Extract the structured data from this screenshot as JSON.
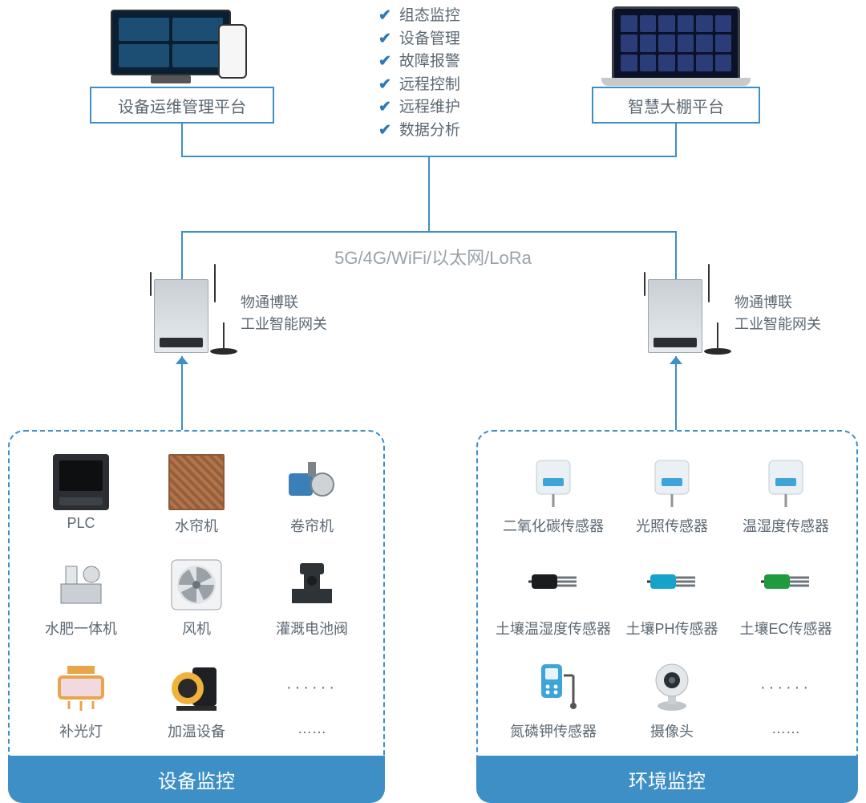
{
  "diagram": {
    "type": "network",
    "accent_color": "#3d8fc6",
    "text_color": "#5c6873",
    "muted_text_color": "#9aa2a8",
    "background_color": "#ffffff"
  },
  "platforms": {
    "left": {
      "label": "设备运维管理平台"
    },
    "right": {
      "label": "智慧大棚平台"
    }
  },
  "features": [
    "组态监控",
    "设备管理",
    "故障报警",
    "远程控制",
    "远程维护",
    "数据分析"
  ],
  "network": {
    "label": "5G/4G/WiFi/以太网/LoRa"
  },
  "gateway": {
    "brand": "物通博联",
    "name": "工业智能网关"
  },
  "panels": {
    "left": {
      "title": "设备监控",
      "items": [
        {
          "label": "PLC",
          "icon": "controller",
          "color": "#2b2f33"
        },
        {
          "label": "水帘机",
          "icon": "pad",
          "color": "#b4744a"
        },
        {
          "label": "卷帘机",
          "icon": "motor",
          "color": "#3b7fb8"
        },
        {
          "label": "水肥一体机",
          "icon": "pump",
          "color": "#9aa2a8"
        },
        {
          "label": "风机",
          "icon": "fan",
          "color": "#cfd3d6"
        },
        {
          "label": "灌溉电池阀",
          "icon": "valve",
          "color": "#2e3338"
        },
        {
          "label": "补光灯",
          "icon": "light",
          "color": "#e8a54a"
        },
        {
          "label": "加温设备",
          "icon": "heater",
          "color": "#f0b23a"
        },
        {
          "label": "……",
          "icon": "dots",
          "color": ""
        }
      ]
    },
    "right": {
      "title": "环境监控",
      "items": [
        {
          "label": "二氧化碳传感器",
          "icon": "sensor-box",
          "color": "#eaf0f4"
        },
        {
          "label": "光照传感器",
          "icon": "sensor-box",
          "color": "#eaf0f4"
        },
        {
          "label": "温湿度传感器",
          "icon": "sensor-box",
          "color": "#eaf0f4"
        },
        {
          "label": "土壤温湿度传感器",
          "icon": "probe",
          "color": "#1a1c1e"
        },
        {
          "label": "土壤PH传感器",
          "icon": "probe",
          "color": "#17a3c9"
        },
        {
          "label": "土壤EC传感器",
          "icon": "probe",
          "color": "#1f9a3e"
        },
        {
          "label": "氮磷钾传感器",
          "icon": "handheld",
          "color": "#3fa5d8"
        },
        {
          "label": "摄像头",
          "icon": "camera",
          "color": "#e4e7ea"
        },
        {
          "label": "……",
          "icon": "dots",
          "color": ""
        }
      ]
    }
  }
}
